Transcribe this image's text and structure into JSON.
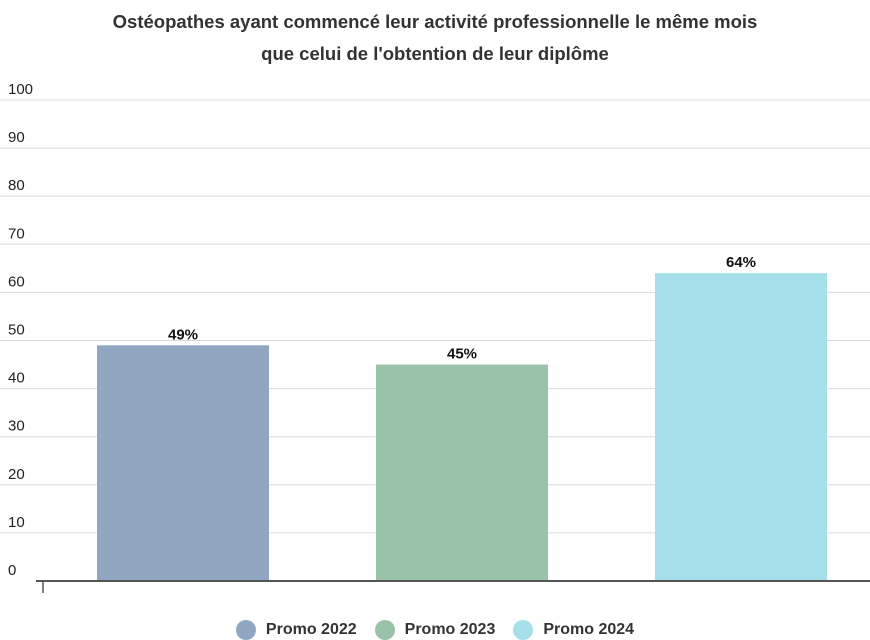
{
  "chart_data": {
    "type": "bar",
    "title_lines": [
      "Ostéopathes ayant commencé leur activité professionnelle le même mois",
      "que celui de l'obtention de leur diplôme"
    ],
    "categories": [
      "Promo 2022",
      "Promo 2023",
      "Promo 2024"
    ],
    "values": [
      49,
      45,
      64
    ],
    "data_labels": [
      "49%",
      "45%",
      "64%"
    ],
    "colors": [
      "#91a6c0",
      "#99c2a9",
      "#a5dfea"
    ],
    "ylim": [
      0,
      100
    ],
    "yticks": [
      0,
      10,
      20,
      30,
      40,
      50,
      60,
      70,
      80,
      90,
      100
    ],
    "grid": true,
    "legend_position": "bottom"
  }
}
